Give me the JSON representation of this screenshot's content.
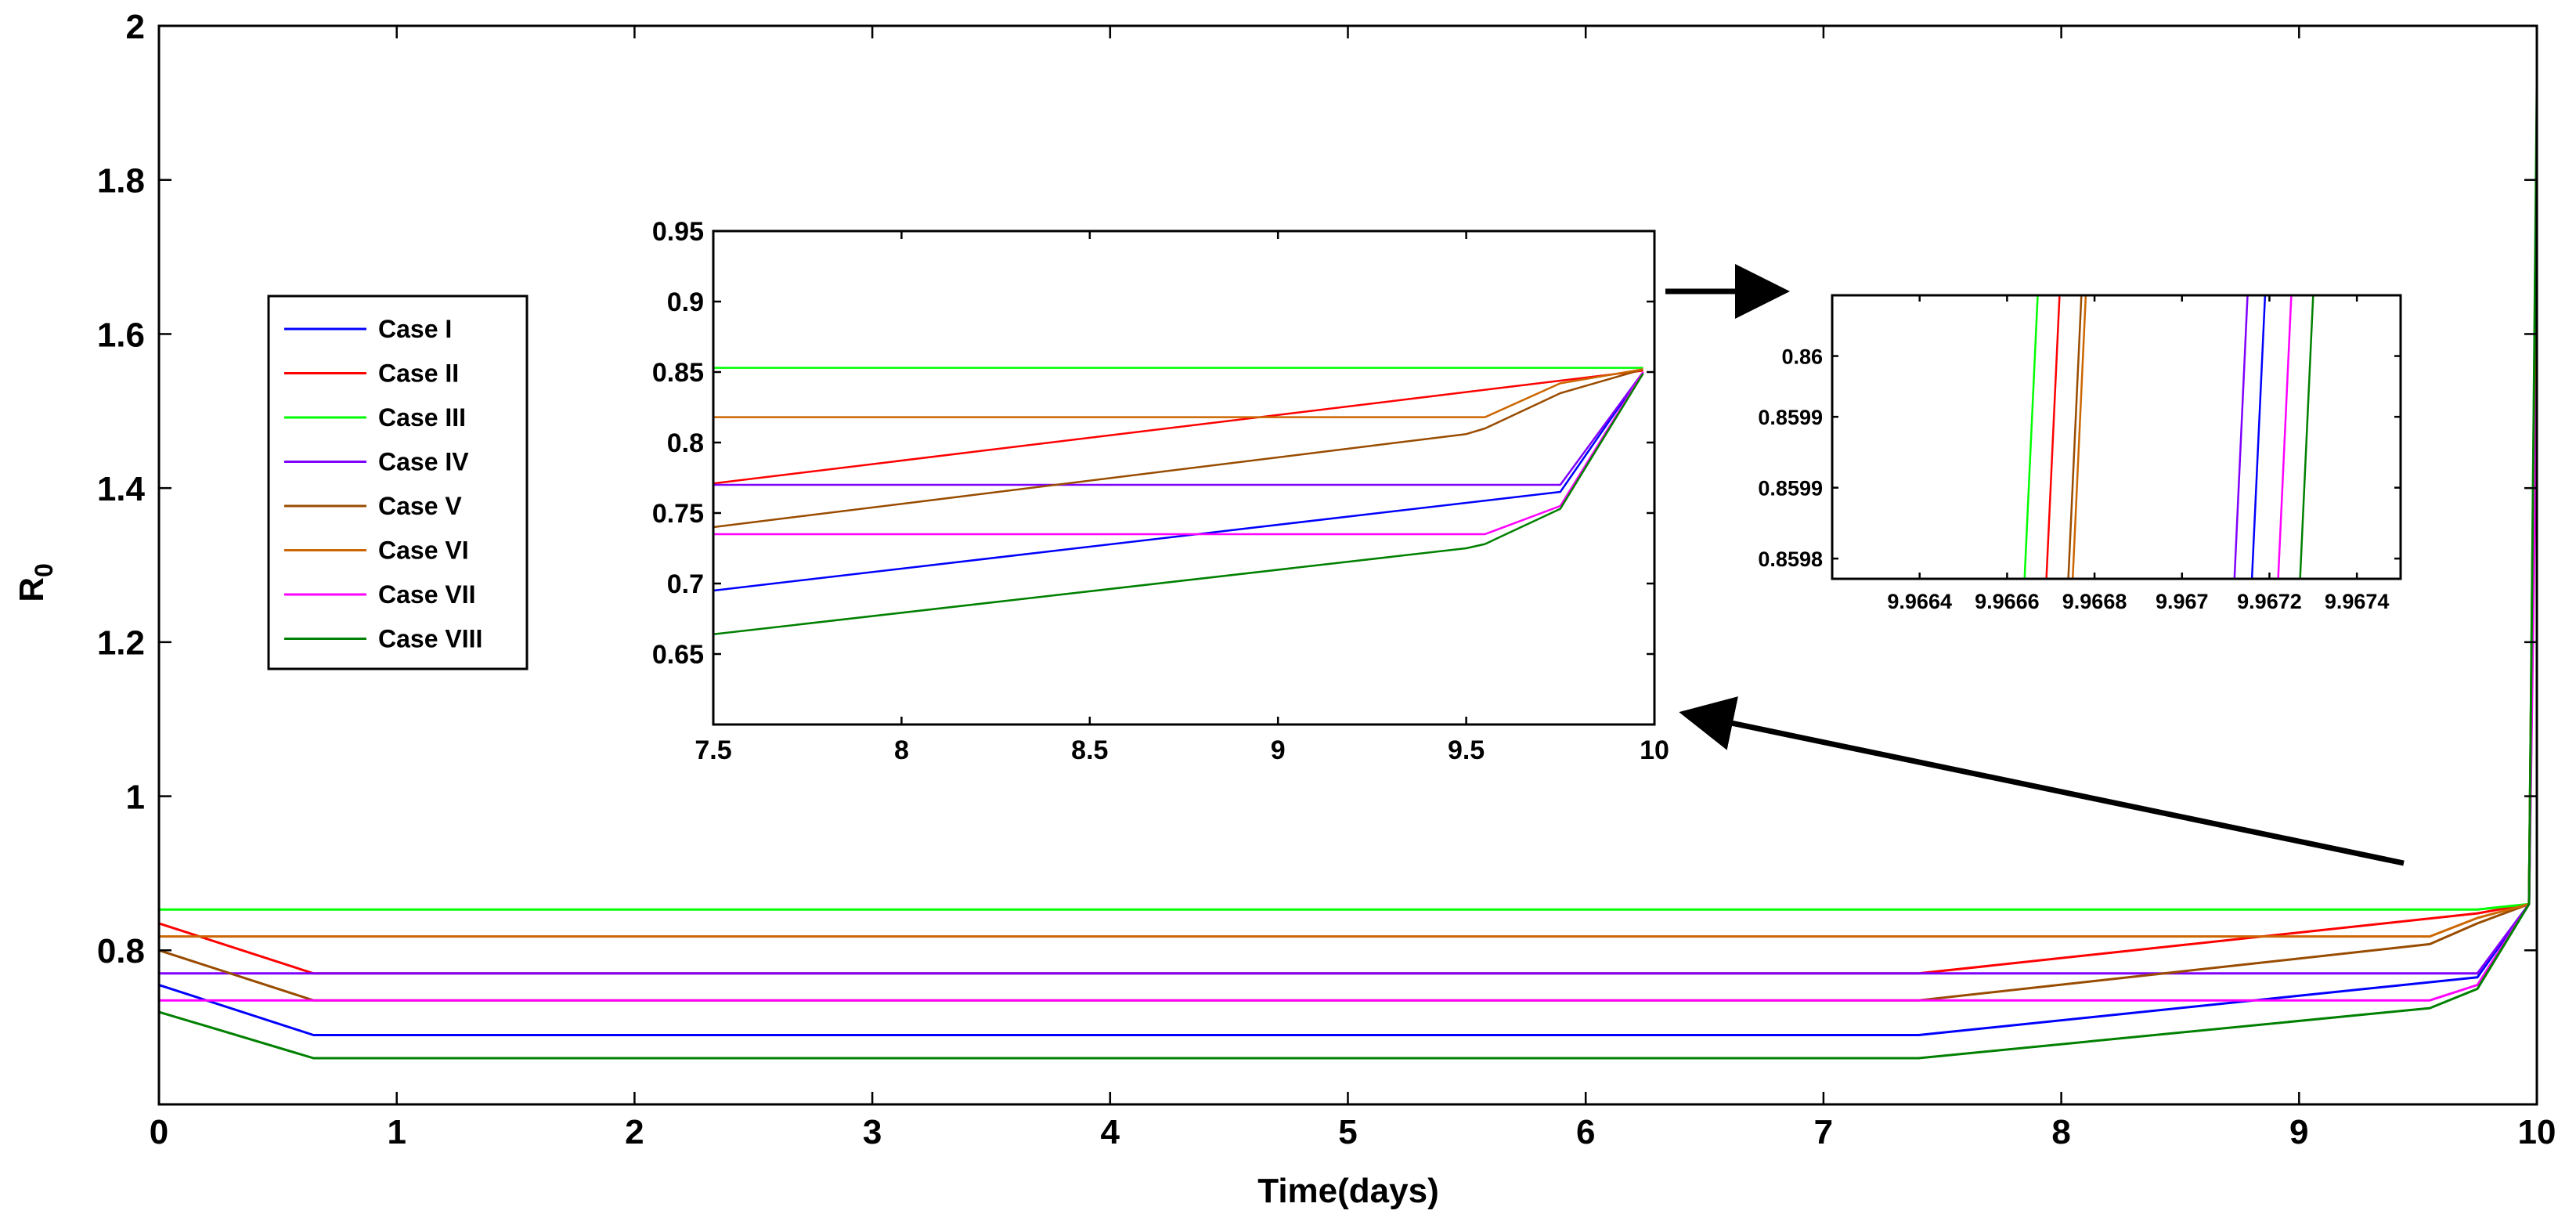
{
  "chart_data": [
    {
      "id": "main",
      "type": "line",
      "title": "",
      "xlabel": "Time(days)",
      "ylabel": "R",
      "ylabel_subscript": "0",
      "xlim": [
        0,
        10
      ],
      "ylim": [
        0.6,
        2
      ],
      "xticks": [
        0,
        1,
        2,
        3,
        4,
        5,
        6,
        7,
        8,
        9,
        10
      ],
      "yticks": [
        0.8,
        1,
        1.2,
        1.4,
        1.6,
        1.8,
        2
      ],
      "grid": false,
      "legend_position": "left",
      "series": [
        {
          "name": "Case I",
          "color": "#0000ff",
          "x": [
            0,
            0.65,
            7.4,
            9.75,
            9.967,
            10
          ],
          "y": [
            0.755,
            0.69,
            0.69,
            0.765,
            0.86,
            1.7
          ]
        },
        {
          "name": "Case II",
          "color": "#ff0000",
          "x": [
            0,
            0.65,
            7.4,
            9.75,
            9.9668,
            10
          ],
          "y": [
            0.835,
            0.77,
            0.77,
            0.848,
            0.86,
            1.75
          ]
        },
        {
          "name": "Case III",
          "color": "#00ff00",
          "x": [
            0,
            9.75,
            9.9666,
            10
          ],
          "y": [
            0.853,
            0.853,
            0.86,
            1.88
          ]
        },
        {
          "name": "Case IV",
          "color": "#8000ff",
          "x": [
            0,
            9.75,
            9.9672,
            10
          ],
          "y": [
            0.77,
            0.77,
            0.86,
            1.6
          ]
        },
        {
          "name": "Case V",
          "color": "#994c00",
          "x": [
            0,
            0.65,
            7.4,
            9.55,
            9.75,
            9.9667,
            10
          ],
          "y": [
            0.8,
            0.735,
            0.735,
            0.808,
            0.835,
            0.86,
            1.85
          ]
        },
        {
          "name": "Case VI",
          "color": "#cc6600",
          "x": [
            0,
            9.55,
            9.75,
            9.9667,
            10
          ],
          "y": [
            0.818,
            0.818,
            0.842,
            0.86,
            1.8
          ]
        },
        {
          "name": "Case VII",
          "color": "#ff00ff",
          "x": [
            0,
            9.55,
            9.75,
            9.9672,
            10
          ],
          "y": [
            0.735,
            0.735,
            0.755,
            0.86,
            1.55
          ]
        },
        {
          "name": "Case VIII",
          "color": "#008000",
          "x": [
            0,
            0.65,
            7.4,
            9.55,
            9.75,
            9.9672,
            10
          ],
          "y": [
            0.72,
            0.66,
            0.66,
            0.725,
            0.75,
            0.86,
            1.92
          ]
        }
      ]
    },
    {
      "id": "inset1",
      "type": "line",
      "title": "",
      "xlim": [
        7.5,
        10
      ],
      "ylim": [
        0.6,
        0.95
      ],
      "xticks": [
        7.5,
        8,
        8.5,
        9,
        9.5,
        10
      ],
      "yticks": [
        0.65,
        0.7,
        0.75,
        0.8,
        0.85,
        0.9,
        0.95
      ],
      "series": [
        {
          "name": "Case I",
          "color": "#0000ff",
          "x": [
            7.5,
            9.75,
            9.97
          ],
          "y": [
            0.695,
            0.765,
            0.85
          ]
        },
        {
          "name": "Case II",
          "color": "#ff0000",
          "x": [
            7.5,
            9.97
          ],
          "y": [
            0.771,
            0.851
          ]
        },
        {
          "name": "Case III",
          "color": "#00ff00",
          "x": [
            7.5,
            9.97
          ],
          "y": [
            0.853,
            0.853
          ]
        },
        {
          "name": "Case IV",
          "color": "#8000ff",
          "x": [
            7.5,
            9.75,
            9.97
          ],
          "y": [
            0.77,
            0.77,
            0.85
          ]
        },
        {
          "name": "Case V",
          "color": "#994c00",
          "x": [
            7.5,
            9.5,
            9.55,
            9.75,
            9.97
          ],
          "y": [
            0.74,
            0.806,
            0.81,
            0.835,
            0.852
          ]
        },
        {
          "name": "Case VI",
          "color": "#cc6600",
          "x": [
            7.5,
            9.55,
            9.75,
            9.97
          ],
          "y": [
            0.818,
            0.818,
            0.842,
            0.852
          ]
        },
        {
          "name": "Case VII",
          "color": "#ff00ff",
          "x": [
            7.5,
            9.55,
            9.75,
            9.97
          ],
          "y": [
            0.735,
            0.735,
            0.755,
            0.85
          ]
        },
        {
          "name": "Case VIII",
          "color": "#008000",
          "x": [
            7.5,
            9.5,
            9.55,
            9.75,
            9.97
          ],
          "y": [
            0.664,
            0.725,
            0.728,
            0.753,
            0.849
          ]
        }
      ]
    },
    {
      "id": "inset2",
      "type": "line",
      "title": "",
      "xlim": [
        9.9662,
        9.9675
      ],
      "ylim": [
        0.85978,
        0.86006
      ],
      "xticks": [
        9.9664,
        9.9666,
        9.9668,
        9.967,
        9.9672,
        9.9674
      ],
      "xtick_labels": [
        "9.9664",
        "9.9666",
        "9.9668",
        "9.967",
        "9.9672",
        "9.9674"
      ],
      "yticks": [
        0.8598,
        0.85987,
        0.85994,
        0.86
      ],
      "ytick_labels": [
        "0.8598",
        "0.8599",
        "0.8599",
        "0.86"
      ],
      "series": [
        {
          "name": "Case I",
          "color": "#0000ff",
          "x": [
            9.96716,
            9.96719
          ],
          "y": [
            0.85978,
            0.86006
          ]
        },
        {
          "name": "Case II",
          "color": "#ff0000",
          "x": [
            9.96669,
            9.96672
          ],
          "y": [
            0.85978,
            0.86006
          ]
        },
        {
          "name": "Case III",
          "color": "#00ff00",
          "x": [
            9.96664,
            9.96667
          ],
          "y": [
            0.85978,
            0.86006
          ]
        },
        {
          "name": "Case IV",
          "color": "#8000ff",
          "x": [
            9.96712,
            9.96715
          ],
          "y": [
            0.85978,
            0.86006
          ]
        },
        {
          "name": "Case V",
          "color": "#994c00",
          "x": [
            9.96674,
            9.96677
          ],
          "y": [
            0.85978,
            0.86006
          ]
        },
        {
          "name": "Case VI",
          "color": "#cc6600",
          "x": [
            9.96675,
            9.96678
          ],
          "y": [
            0.85978,
            0.86006
          ]
        },
        {
          "name": "Case VII",
          "color": "#ff00ff",
          "x": [
            9.96722,
            9.96725
          ],
          "y": [
            0.85978,
            0.86006
          ]
        },
        {
          "name": "Case VIII",
          "color": "#008000",
          "x": [
            9.96727,
            9.9673
          ],
          "y": [
            0.85978,
            0.86006
          ]
        }
      ]
    }
  ]
}
